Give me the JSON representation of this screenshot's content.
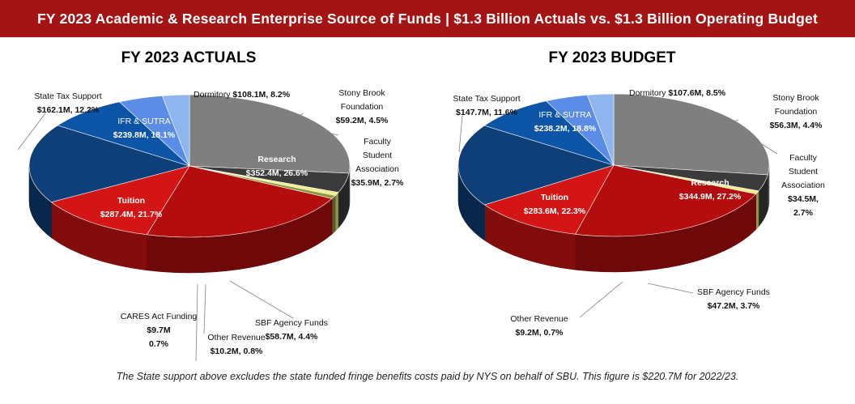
{
  "banner": {
    "title": "FY 2023 Academic & Research Enterprise Source of Funds | $1.3 Billion  Actuals vs. $1.3 Billion  Operating Budget"
  },
  "footnote": "The State support above excludes the state funded fringe benefits costs paid by NYS on behalf of SBU. This figure is $220.7M for 2022/23.",
  "colors": {
    "banner": "#a31515",
    "Tuition": "#b30d0d",
    "State Tax Support": "#d41515",
    "IFR & SUTRA": "#0f3f78",
    "Dormitory": "#0b54a6",
    "Stony Brook Foundation": "#5b8de6",
    "Faculty Student Association": "#8fb5ee",
    "Research": "#7f7f7f",
    "SBF Agency Funds": "#3b3b3b",
    "Other Revenue": "#f2ec8c",
    "CARES Act Funding": "#8a9a3c"
  },
  "chart_data": [
    {
      "type": "pie",
      "title": "FY 2023 ACTUALS",
      "slices": [
        {
          "name": "Research",
          "value": 352.4,
          "percent": 26.6,
          "label": [
            "Research",
            "$352.4M, 26.6%"
          ]
        },
        {
          "name": "SBF Agency Funds",
          "value": 58.7,
          "percent": 4.4,
          "label": [
            "SBF Agency Funds",
            "$58.7M, 4.4%"
          ]
        },
        {
          "name": "Other Revenue",
          "value": 10.2,
          "percent": 0.8,
          "label": [
            "Other Revenue",
            "$10.2M, 0.8%"
          ]
        },
        {
          "name": "CARES Act Funding",
          "value": 9.7,
          "percent": 0.7,
          "label": [
            "CARES Act Funding",
            "$9.7M",
            "0.7%"
          ]
        },
        {
          "name": "Tuition",
          "value": 287.4,
          "percent": 21.7,
          "label": [
            "Tuition",
            "$287.4M, 21.7%"
          ]
        },
        {
          "name": "State Tax Support",
          "value": 162.1,
          "percent": 12.2,
          "label": [
            "State Tax Support",
            "$162.1M, 12.2%"
          ]
        },
        {
          "name": "IFR & SUTRA",
          "value": 239.8,
          "percent": 18.1,
          "label": [
            "IFR & SUTRA",
            "$239.8M, 18.1%"
          ]
        },
        {
          "name": "Dormitory",
          "value": 108.1,
          "percent": 8.2,
          "label": [
            "Dormitory",
            "$108.1M, 8.2%"
          ]
        },
        {
          "name": "Stony Brook Foundation",
          "value": 59.2,
          "percent": 4.5,
          "label": [
            "Stony Brook",
            "Foundation",
            "$59.2M, 4.5%"
          ]
        },
        {
          "name": "Faculty Student Association",
          "value": 35.9,
          "percent": 2.7,
          "label": [
            "Faculty",
            "Student",
            "Association",
            "$35.9M, 2.7%"
          ]
        }
      ]
    },
    {
      "type": "pie",
      "title": "FY 2023 BUDGET",
      "slices": [
        {
          "name": "Research",
          "value": 344.9,
          "percent": 27.2,
          "label": [
            "Research",
            "$344.9M, 27.2%"
          ]
        },
        {
          "name": "SBF Agency Funds",
          "value": 47.2,
          "percent": 3.7,
          "label": [
            "SBF Agency Funds",
            "$47.2M, 3.7%"
          ]
        },
        {
          "name": "Other Revenue",
          "value": 9.2,
          "percent": 0.7,
          "label": [
            "Other Revenue",
            "$9.2M, 0.7%"
          ]
        },
        {
          "name": "Tuition",
          "value": 283.6,
          "percent": 22.3,
          "label": [
            "Tuition",
            "$283.6M, 22.3%"
          ]
        },
        {
          "name": "State Tax Support",
          "value": 147.7,
          "percent": 11.6,
          "label": [
            "State Tax Support",
            "$147.7M, 11.6%"
          ]
        },
        {
          "name": "IFR & SUTRA",
          "value": 238.2,
          "percent": 18.8,
          "label": [
            "IFR & SUTRA",
            "$238.2M, 18.8%"
          ]
        },
        {
          "name": "Dormitory",
          "value": 107.6,
          "percent": 8.5,
          "label": [
            "Dormitory",
            "$107.6M, 8.5%"
          ]
        },
        {
          "name": "Stony Brook Foundation",
          "value": 56.3,
          "percent": 4.4,
          "label": [
            "Stony Brook",
            "Foundation",
            "$56.3M, 4.4%"
          ]
        },
        {
          "name": "Faculty Student Association",
          "value": 34.5,
          "percent": 2.7,
          "label": [
            "Faculty",
            "Student",
            "Association",
            "$34.5M,",
            "2.7%"
          ]
        }
      ]
    }
  ]
}
